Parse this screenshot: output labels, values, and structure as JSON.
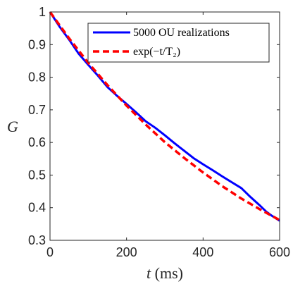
{
  "chart_data": {
    "type": "line",
    "xlabel": "t (ms)",
    "xlabel_var": "t",
    "xlabel_unit": " (ms)",
    "ylabel": "G",
    "xlim": [
      0,
      600
    ],
    "ylim": [
      0.3,
      1.0
    ],
    "x_ticks": [
      0,
      200,
      400,
      600
    ],
    "y_ticks": [
      0.3,
      0.4,
      0.5,
      0.6,
      0.7,
      0.8,
      0.9,
      1.0
    ],
    "x_tick_labels": [
      "0",
      "200",
      "400",
      "600"
    ],
    "y_tick_labels": [
      "0.3",
      "0.4",
      "0.5",
      "0.6",
      "0.7",
      "0.8",
      "0.9",
      "1"
    ],
    "grid": false,
    "legend_position": "top-right",
    "series": [
      {
        "name": "5000 OU realizations",
        "style": "solid",
        "color": "#0000ff",
        "x": [
          0,
          25,
          50,
          75,
          100,
          125,
          150,
          175,
          200,
          225,
          250,
          275,
          300,
          325,
          350,
          375,
          400,
          425,
          450,
          475,
          500,
          520,
          535,
          550,
          565,
          580,
          600
        ],
        "y": [
          1.0,
          0.955,
          0.915,
          0.872,
          0.838,
          0.805,
          0.77,
          0.743,
          0.718,
          0.692,
          0.665,
          0.645,
          0.622,
          0.598,
          0.575,
          0.552,
          0.533,
          0.515,
          0.496,
          0.478,
          0.46,
          0.437,
          0.421,
          0.405,
          0.388,
          0.375,
          0.36
        ]
      },
      {
        "name": "exp(−t/T₂)",
        "style": "dashed",
        "color": "#ff0000",
        "T2_ms": 590,
        "x": [
          0,
          50,
          100,
          150,
          200,
          250,
          300,
          350,
          400,
          450,
          500,
          550,
          600
        ],
        "y": [
          1.0,
          0.919,
          0.844,
          0.776,
          0.713,
          0.655,
          0.601,
          0.553,
          0.508,
          0.466,
          0.428,
          0.394,
          0.362
        ]
      }
    ]
  }
}
